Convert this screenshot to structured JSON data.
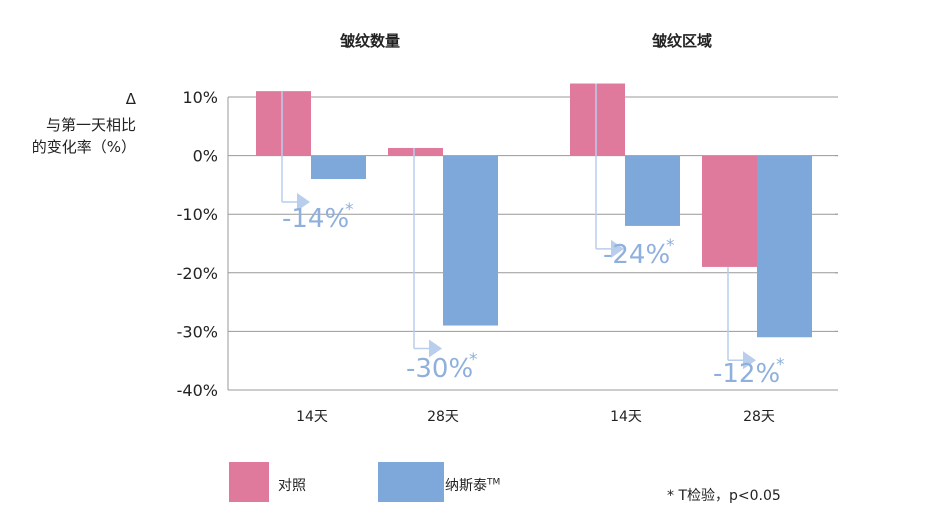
{
  "chart_data": [
    {
      "type": "bar",
      "title": "皱纹数量",
      "categories": [
        "14天",
        "28天"
      ],
      "series": [
        {
          "name": "对照",
          "values": [
            11,
            1.3
          ]
        },
        {
          "name": "纳斯泰™",
          "values": [
            -4,
            -29
          ]
        }
      ],
      "annotations": [
        "-14%*",
        "-30%*"
      ],
      "ylim": [
        -40,
        10
      ]
    },
    {
      "type": "bar",
      "title": "皱纹区域",
      "categories": [
        "14天",
        "28天"
      ],
      "series": [
        {
          "name": "对照",
          "values": [
            12.3,
            -19
          ]
        },
        {
          "name": "纳斯泰™",
          "values": [
            -12,
            -31
          ]
        }
      ],
      "annotations": [
        "-24%*",
        "-12%*"
      ],
      "ylim": [
        -40,
        10
      ]
    }
  ],
  "y_axis": {
    "label_symbol": "Δ",
    "label_line1": "与第一天相比",
    "label_line2": "的变化率（%）",
    "ticks": [
      10,
      0,
      -10,
      -20,
      -30,
      -40
    ],
    "tick_labels": [
      "10%",
      "0%",
      "-10%",
      "-20%",
      "-30%",
      "-40%"
    ]
  },
  "legend": {
    "control_label": "对照",
    "test_label": "纳斯泰",
    "test_tm": "TM"
  },
  "colors": {
    "control": "#e07a9c",
    "test": "#7ea8d9",
    "annotation": "#8fb0dc",
    "grid": "#999999"
  },
  "note": "* T检验，p<0.05"
}
